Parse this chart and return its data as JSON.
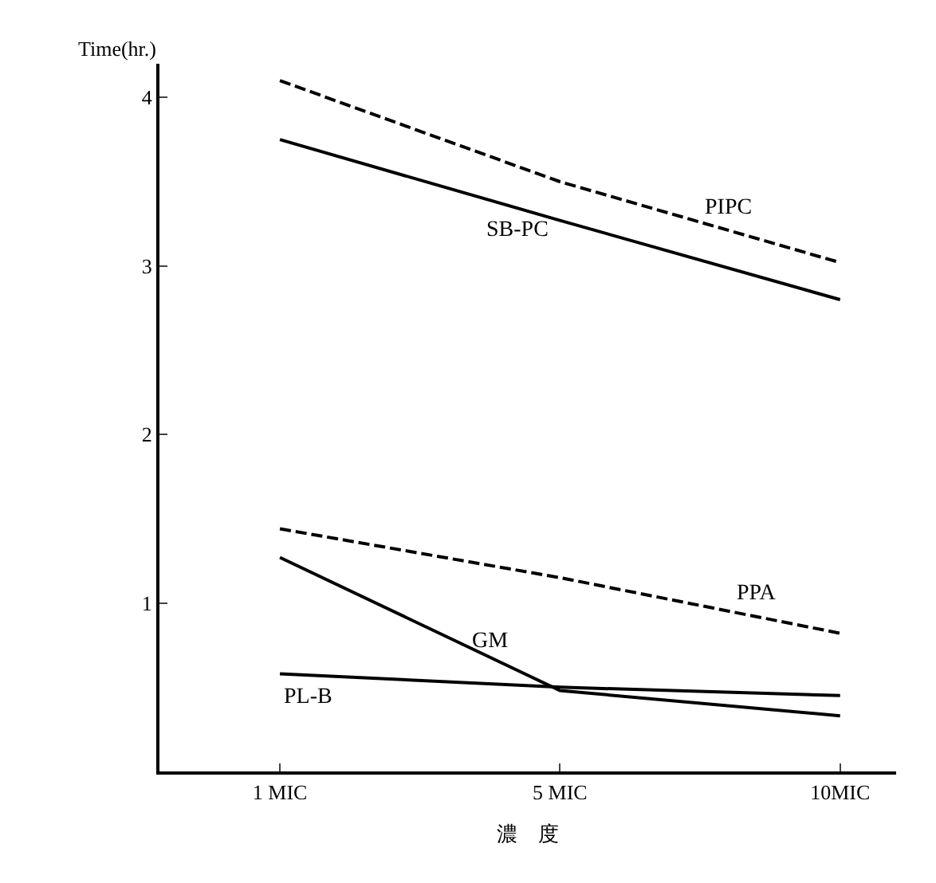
{
  "chart_data": {
    "type": "line",
    "ylabel": "Time(hr.)",
    "xlabel": "濃　度",
    "categories": [
      "1 MIC",
      "5 MIC",
      "10MIC"
    ],
    "ylim": [
      0,
      4.2
    ],
    "yticks": [
      1,
      2,
      3,
      4
    ],
    "legend": false,
    "marker": "none",
    "series": [
      {
        "name": "PIPC",
        "color": "#000000",
        "line_style": "dashed",
        "values": [
          4.1,
          3.5,
          3.02
        ]
      },
      {
        "name": "SB-PC",
        "color": "#000000",
        "line_style": "solid",
        "values": [
          3.75,
          3.27,
          2.8
        ]
      },
      {
        "name": "PPA",
        "color": "#000000",
        "line_style": "dashed",
        "values": [
          1.44,
          1.15,
          0.82
        ]
      },
      {
        "name": "GM",
        "color": "#000000",
        "line_style": "solid",
        "values": [
          1.27,
          0.48,
          0.33
        ]
      },
      {
        "name": "PL-B",
        "color": "#000000",
        "line_style": "solid",
        "values": [
          0.58,
          0.5,
          0.45
        ]
      }
    ]
  }
}
